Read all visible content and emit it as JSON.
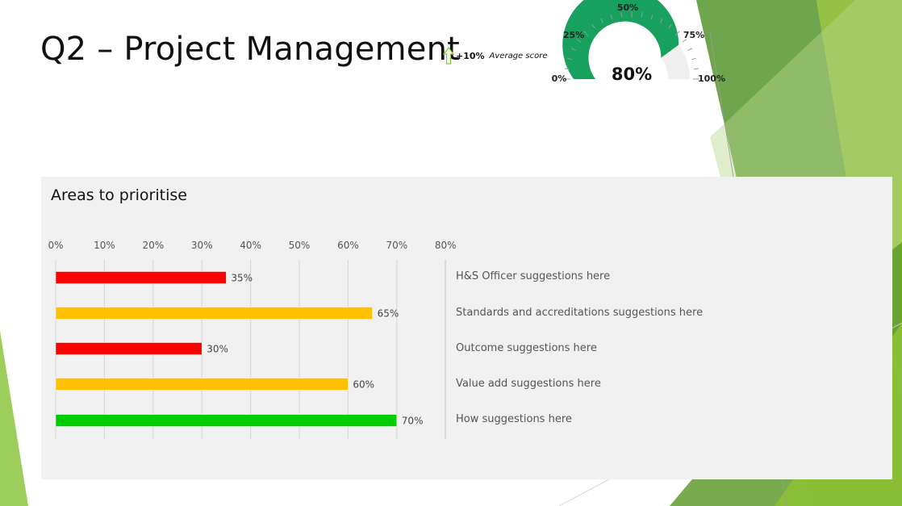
{
  "title": "Q2 – Project Management",
  "trend": {
    "value": "+10%",
    "label": "Average score"
  },
  "gauge": {
    "value": 80,
    "display": "80%",
    "scale_labels": [
      "0%",
      "25%",
      "50%",
      "75%",
      "100%"
    ],
    "fill_color": "#17a05e",
    "track_color": "#efefef"
  },
  "section_title": "Areas to prioritise",
  "chart_data": {
    "type": "bar",
    "orientation": "horizontal",
    "categories": [
      "H&S Officer",
      "Standards and accreditations",
      "Outcome",
      "Value add",
      "How"
    ],
    "values": [
      35,
      65,
      30,
      60,
      70
    ],
    "data_labels": [
      "35%",
      "65%",
      "30%",
      "60%",
      "70%"
    ],
    "bar_colors": [
      "#ff0000",
      "#ffc000",
      "#ff0000",
      "#ffc000",
      "#00cc00"
    ],
    "xlim": [
      0,
      80
    ],
    "x_tick_labels": [
      "0%",
      "10%",
      "20%",
      "30%",
      "40%",
      "50%",
      "60%",
      "70%",
      "80%"
    ],
    "grid": "vertical",
    "axis_position": "top"
  },
  "suggestions": [
    "H&S Officer suggestions here",
    "Standards and accreditations suggestions here",
    "Outcome suggestions here",
    "Value add suggestions here",
    "How suggestions here"
  ],
  "colors": {
    "accent_green": "#7dc242",
    "arrow_outline": "#8cc34a"
  }
}
